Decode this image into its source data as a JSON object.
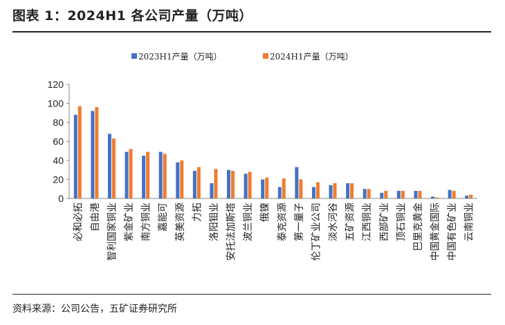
{
  "title": "图表 1：2024H1 各公司产量（万吨）",
  "source": "资料来源：公司公告，五矿证券研究所",
  "chart_data": {
    "type": "bar",
    "categories": [
      "必和必拓",
      "自由港",
      "智利国家铜业",
      "紫金矿业",
      "南方铜业",
      "嘉能可",
      "英美资源",
      "力拓",
      "洛阳钼业",
      "安托法加斯塔",
      "波兰铜业",
      "俄镍",
      "泰克资源",
      "第一量子",
      "伦丁矿业公司",
      "淡水河谷",
      "五矿资源",
      "江西铜业",
      "西部矿业",
      "顶石铜业",
      "巴里克黄金",
      "中国黄金国际",
      "中国有色矿业",
      "云南铜业"
    ],
    "series": [
      {
        "name": "2023H1产量（万吨）",
        "color": "#4472C4",
        "values": [
          88,
          92,
          68,
          49,
          45,
          49,
          38,
          29,
          16,
          30,
          26,
          20,
          12,
          33,
          12,
          14,
          16,
          10,
          6,
          8,
          8,
          2,
          9,
          3
        ]
      },
      {
        "name": "2024H1产量（万吨）",
        "color": "#ED7D31",
        "values": [
          97,
          96,
          63,
          52,
          49,
          47,
          40,
          33,
          31,
          29,
          28,
          22,
          21,
          20,
          17,
          16,
          16,
          10,
          8,
          8,
          8,
          1,
          8,
          4
        ]
      }
    ],
    "yticks": [
      0,
      20,
      40,
      60,
      80,
      100,
      120
    ],
    "ylim": [
      0,
      120
    ],
    "grid": false,
    "legend": "top-center"
  }
}
